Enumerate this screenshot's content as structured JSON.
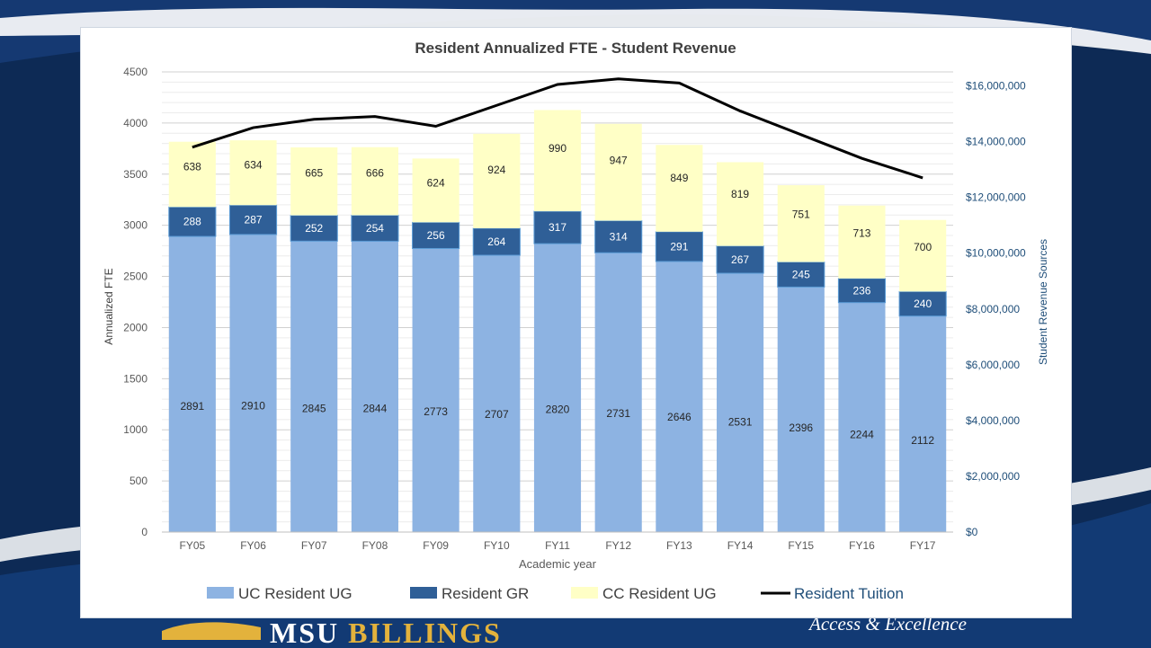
{
  "footer": {
    "brand_first": "MSU",
    "brand_second": "BILLINGS",
    "tagline": "Access & Excellence"
  },
  "colors": {
    "uc_resident_ug": "#8db3e2",
    "resident_gr": "#2f5f97",
    "cc_resident_ug": "#ffffc6",
    "resident_tuition": "#000000",
    "right_axis_text": "#1f4e79",
    "axis_text": "#595959"
  },
  "chart_data": {
    "type": "bar",
    "stacked": true,
    "title": "Resident Annualized FTE - Student Revenue",
    "xlabel": "Academic year",
    "ylabel": "Annualized FTE",
    "y2label": "Student Revenue Sources",
    "categories": [
      "FY05",
      "FY06",
      "FY07",
      "FY08",
      "FY09",
      "FY10",
      "FY11",
      "FY12",
      "FY13",
      "FY14",
      "FY15",
      "FY16",
      "FY17"
    ],
    "ylim": [
      0,
      4500
    ],
    "yticks": [
      0,
      500,
      1000,
      1500,
      2000,
      2500,
      3000,
      3500,
      4000,
      4500
    ],
    "y2lim": [
      0,
      16500000
    ],
    "y2ticks": [
      0,
      2000000,
      4000000,
      6000000,
      8000000,
      10000000,
      12000000,
      14000000,
      16000000
    ],
    "y2ticklabels": [
      "$0",
      "$2,000,000",
      "$4,000,000",
      "$6,000,000",
      "$8,000,000",
      "$10,000,000",
      "$12,000,000",
      "$14,000,000",
      "$16,000,000"
    ],
    "grid": true,
    "legend_position": "bottom",
    "series": [
      {
        "name": "UC Resident UG",
        "kind": "bar",
        "values": [
          2891,
          2910,
          2845,
          2844,
          2773,
          2707,
          2820,
          2731,
          2646,
          2531,
          2396,
          2244,
          2112
        ]
      },
      {
        "name": "Resident GR",
        "kind": "bar",
        "values": [
          288,
          287,
          252,
          254,
          256,
          264,
          317,
          314,
          291,
          267,
          245,
          236,
          240
        ]
      },
      {
        "name": "CC Resident UG",
        "kind": "bar",
        "values": [
          638,
          634,
          665,
          666,
          624,
          924,
          990,
          947,
          849,
          819,
          751,
          713,
          700
        ]
      },
      {
        "name": "Resident Tuition",
        "kind": "line",
        "axis": "right",
        "values": [
          13800000,
          14500000,
          14800000,
          14900000,
          14550000,
          15300000,
          16050000,
          16250000,
          16100000,
          15100000,
          14250000,
          13400000,
          12700000
        ]
      }
    ]
  }
}
